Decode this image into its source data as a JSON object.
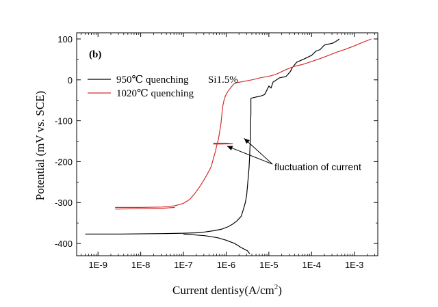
{
  "chart_data": {
    "type": "line",
    "title": "",
    "panel_label": "(b)",
    "annotation_tag": "Si1.5%",
    "xlabel": "Current dentisy(A/cm",
    "xlabel_superscript": "2",
    "xlabel_suffix": ")",
    "ylabel": "Potential (mV vs. SCE)",
    "x_scale": "log",
    "xlim": [
      -9.5,
      -2.45
    ],
    "ylim": [
      -430,
      115
    ],
    "xticks": [
      {
        "value": -9,
        "label": "1E-9"
      },
      {
        "value": -8,
        "label": "1E-8"
      },
      {
        "value": -7,
        "label": "1E-7"
      },
      {
        "value": -6,
        "label": "1E-6"
      },
      {
        "value": -5,
        "label": "1E-5"
      },
      {
        "value": -4,
        "label": "1E-4"
      },
      {
        "value": -3,
        "label": "1E-3"
      }
    ],
    "yticks": [
      {
        "value": 100,
        "label": "100"
      },
      {
        "value": 0,
        "label": "0"
      },
      {
        "value": -100,
        "label": "-100"
      },
      {
        "value": -200,
        "label": "-200"
      },
      {
        "value": -300,
        "label": "-300"
      },
      {
        "value": -400,
        "label": "-400"
      }
    ],
    "legend_position": "top-left",
    "annotation": {
      "text": "fluctuation of current",
      "targets": [
        {
          "log_current": -5.58,
          "potential": -143
        },
        {
          "log_current": -5.98,
          "potential": -162
        }
      ]
    },
    "series": [
      {
        "name": "950℃ quenching",
        "color": "#000000",
        "cathodic": [
          [
            -9.3,
            -377
          ],
          [
            -8.5,
            -377
          ],
          [
            -7.5,
            -376
          ],
          [
            -7.0,
            -375
          ],
          [
            -6.7,
            -374
          ],
          [
            -6.5,
            -372
          ],
          [
            -6.3,
            -369
          ],
          [
            -6.1,
            -365
          ],
          [
            -5.95,
            -359
          ],
          [
            -5.85,
            -353
          ],
          [
            -5.75,
            -345
          ],
          [
            -5.65,
            -334
          ],
          [
            -5.6,
            -318
          ],
          [
            -5.55,
            -300
          ],
          [
            -5.52,
            -282
          ],
          [
            -5.5,
            -260
          ],
          [
            -5.48,
            -235
          ],
          [
            -5.46,
            -210
          ],
          [
            -5.45,
            -185
          ],
          [
            -5.44,
            -160
          ],
          [
            -5.43,
            -135
          ],
          [
            -5.43,
            -110
          ],
          [
            -5.42,
            -85
          ],
          [
            -5.42,
            -60
          ],
          [
            -5.42,
            -45
          ]
        ],
        "anodic": [
          [
            -7.0,
            -377
          ],
          [
            -6.5,
            -381
          ],
          [
            -6.2,
            -386
          ],
          [
            -6.0,
            -392
          ],
          [
            -5.8,
            -400
          ],
          [
            -5.65,
            -410
          ],
          [
            -5.5,
            -418
          ],
          [
            -5.45,
            -425
          ]
        ],
        "passive": [
          [
            -5.42,
            -45
          ],
          [
            -5.3,
            -42
          ],
          [
            -5.2,
            -40
          ],
          [
            -5.1,
            -36
          ],
          [
            -5.05,
            -26
          ],
          [
            -5.0,
            -15
          ],
          [
            -4.95,
            -20
          ],
          [
            -4.9,
            -5
          ],
          [
            -4.85,
            -2
          ],
          [
            -4.75,
            5
          ],
          [
            -4.6,
            8
          ],
          [
            -4.5,
            20
          ],
          [
            -4.45,
            30
          ],
          [
            -4.35,
            43
          ],
          [
            -4.2,
            50
          ],
          [
            -4.0,
            60
          ],
          [
            -3.9,
            70
          ],
          [
            -3.8,
            74
          ],
          [
            -3.7,
            85
          ],
          [
            -3.5,
            90
          ],
          [
            -3.4,
            96
          ],
          [
            -3.35,
            100
          ]
        ]
      },
      {
        "name": "1020℃ quenching",
        "color": "#d62b2b",
        "cathodic": [
          [
            -8.6,
            -312
          ],
          [
            -8.0,
            -312
          ],
          [
            -7.5,
            -311
          ],
          [
            -7.2,
            -308
          ],
          [
            -7.0,
            -302
          ],
          [
            -6.85,
            -292
          ],
          [
            -6.75,
            -280
          ],
          [
            -6.65,
            -266
          ],
          [
            -6.55,
            -250
          ],
          [
            -6.45,
            -232
          ],
          [
            -6.35,
            -212
          ],
          [
            -6.3,
            -193
          ],
          [
            -6.25,
            -175
          ],
          [
            -6.22,
            -160
          ],
          [
            -6.18,
            -145
          ],
          [
            -6.15,
            -125
          ],
          [
            -6.12,
            -105
          ],
          [
            -6.1,
            -85
          ],
          [
            -6.08,
            -65
          ],
          [
            -6.05,
            -50
          ],
          [
            -6.02,
            -40
          ],
          [
            -5.97,
            -30
          ],
          [
            -5.9,
            -20
          ],
          [
            -5.82,
            -10
          ],
          [
            -5.75,
            -7
          ],
          [
            -5.6,
            -4
          ],
          [
            -5.4,
            0
          ],
          [
            -5.2,
            5
          ],
          [
            -4.95,
            10
          ],
          [
            -4.8,
            15
          ],
          [
            -4.6,
            25
          ],
          [
            -4.4,
            33
          ],
          [
            -4.2,
            38
          ],
          [
            -4.0,
            45
          ],
          [
            -3.8,
            52
          ],
          [
            -3.6,
            60
          ],
          [
            -3.4,
            68
          ],
          [
            -3.2,
            75
          ],
          [
            -3.0,
            83
          ],
          [
            -2.8,
            92
          ],
          [
            -2.6,
            100
          ]
        ],
        "anodic": [
          [
            -7.2,
            -312
          ],
          [
            -7.5,
            -314
          ],
          [
            -8.0,
            -315
          ],
          [
            -8.6,
            -316
          ]
        ],
        "passive": [
          [
            -6.3,
            -155
          ],
          [
            -6.0,
            -155
          ],
          [
            -5.85,
            -156
          ],
          [
            -6.1,
            -157
          ],
          [
            -6.3,
            -157
          ]
        ]
      }
    ]
  }
}
